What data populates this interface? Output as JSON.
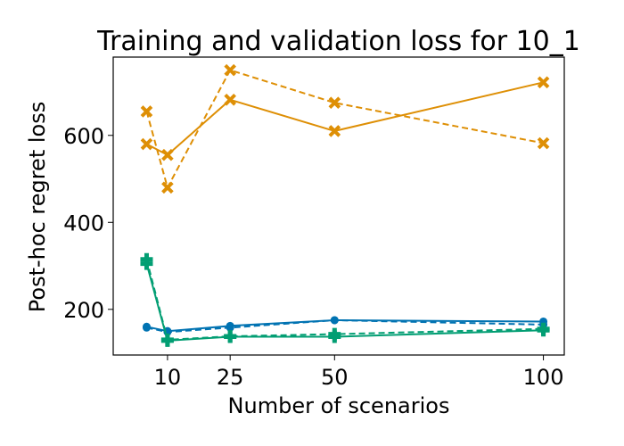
{
  "chart_data": {
    "type": "line",
    "title": "Training and validation loss for 10_1",
    "xlabel": "Number of scenarios",
    "ylabel": "Post-hoc regret loss",
    "xlim": [
      -3,
      105
    ],
    "ylim": [
      95,
      780
    ],
    "xticks": [
      {
        "value": 10,
        "label": "10"
      },
      {
        "value": 25,
        "label": "25"
      },
      {
        "value": 50,
        "label": "50"
      },
      {
        "value": 100,
        "label": "100"
      }
    ],
    "yticks": [
      {
        "value": 200,
        "label": "200"
      },
      {
        "value": 400,
        "label": "400"
      },
      {
        "value": 600,
        "label": "600"
      }
    ],
    "grid": false,
    "legend": "none",
    "series": [
      {
        "color": "#de8f05",
        "linestyle": "solid",
        "marker": "x-cross",
        "points": [
          [
            5,
            580
          ],
          [
            10,
            555
          ],
          [
            25,
            682
          ],
          [
            50,
            610
          ],
          [
            100,
            722
          ]
        ]
      },
      {
        "color": "#de8f05",
        "linestyle": "dashed",
        "marker": "x-cross",
        "points": [
          [
            5,
            655
          ],
          [
            10,
            480
          ],
          [
            25,
            750
          ],
          [
            50,
            675
          ],
          [
            100,
            582
          ]
        ]
      },
      {
        "color": "#0173b2",
        "linestyle": "solid",
        "marker": "circle",
        "points": [
          [
            5,
            160
          ],
          [
            10,
            150
          ],
          [
            25,
            162
          ],
          [
            50,
            175
          ],
          [
            100,
            172
          ]
        ]
      },
      {
        "color": "#0173b2",
        "linestyle": "dashed",
        "marker": "circle",
        "points": [
          [
            5,
            158
          ],
          [
            10,
            148
          ],
          [
            25,
            158
          ],
          [
            50,
            175
          ],
          [
            100,
            165
          ]
        ]
      },
      {
        "color": "#029e73",
        "linestyle": "solid",
        "marker": "plus",
        "points": [
          [
            5,
            305
          ],
          [
            10,
            128
          ],
          [
            25,
            137
          ],
          [
            50,
            137
          ],
          [
            100,
            152
          ]
        ]
      },
      {
        "color": "#029e73",
        "linestyle": "dashed",
        "marker": "plus",
        "points": [
          [
            5,
            315
          ],
          [
            10,
            130
          ],
          [
            25,
            138
          ],
          [
            50,
            143
          ],
          [
            100,
            155
          ]
        ]
      }
    ]
  }
}
